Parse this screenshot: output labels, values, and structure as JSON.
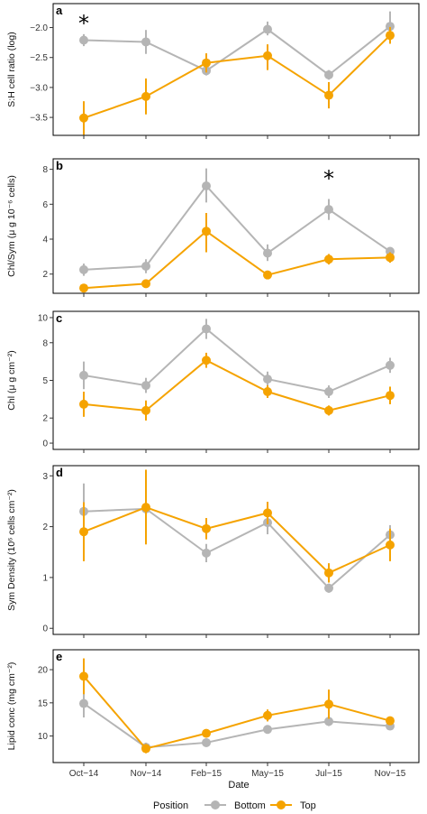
{
  "legend": {
    "title": "Position",
    "entries": [
      {
        "name": "Bottom",
        "color": "#b5b5b5"
      },
      {
        "name": "Top",
        "color": "#f5a300"
      }
    ]
  },
  "x_title": "Date",
  "chart_data": [
    {
      "panel": "a",
      "type": "line",
      "ylabel": "S:H cell ratio (log)",
      "ylim": [
        -3.8,
        -1.6
      ],
      "yticks": [
        -2.0,
        -2.5,
        -3.0,
        -3.5
      ],
      "ytick_labels": [
        "−2.0",
        "−2.5",
        "−3.0",
        "−3.5"
      ],
      "categories": [
        "Oct−14",
        "Nov−14",
        "Feb−15",
        "May−15",
        "Jul−15",
        "Nov−15"
      ],
      "annotations": [
        {
          "text": "*",
          "at": "Oct−14"
        }
      ],
      "series": [
        {
          "name": "Bottom",
          "values": [
            -2.21,
            -2.24,
            -2.72,
            -2.03,
            -2.79,
            -1.98
          ],
          "lower": [
            -2.31,
            -2.44,
            -2.8,
            -2.13,
            -2.87,
            -2.17
          ],
          "upper": [
            -2.11,
            -2.04,
            -2.64,
            -1.9,
            -2.71,
            -1.73
          ]
        },
        {
          "name": "Top",
          "values": [
            -3.51,
            -3.15,
            -2.59,
            -2.47,
            -3.13,
            -2.13
          ],
          "lower": [
            -3.79,
            -3.45,
            -2.75,
            -2.71,
            -3.35,
            -2.27
          ],
          "upper": [
            -3.23,
            -2.85,
            -2.43,
            -2.28,
            -2.91,
            -1.99
          ]
        }
      ]
    },
    {
      "panel": "b",
      "type": "line",
      "ylabel": "Chl/Sym (μ g 10⁻⁶ cells)",
      "ylim": [
        0.9,
        8.6
      ],
      "yticks": [
        2,
        4,
        6,
        8
      ],
      "ytick_labels": [
        "2",
        "4",
        "6",
        "8"
      ],
      "categories": [
        "Oct−14",
        "Nov−14",
        "Feb−15",
        "May−15",
        "Jul−15",
        "Nov−15"
      ],
      "annotations": [
        {
          "text": "*",
          "at": "Jul−15"
        }
      ],
      "series": [
        {
          "name": "Bottom",
          "values": [
            2.25,
            2.45,
            7.05,
            3.2,
            5.7,
            3.3
          ],
          "lower": [
            1.9,
            2.05,
            6.1,
            2.75,
            5.1,
            3.1
          ],
          "upper": [
            2.6,
            2.85,
            8.05,
            3.7,
            6.3,
            3.5
          ]
        },
        {
          "name": "Top",
          "values": [
            1.2,
            1.45,
            4.45,
            1.95,
            2.85,
            2.95
          ],
          "lower": [
            1.05,
            1.3,
            3.25,
            1.75,
            2.55,
            2.65
          ],
          "upper": [
            1.35,
            1.6,
            5.5,
            2.15,
            3.15,
            3.25
          ]
        }
      ]
    },
    {
      "panel": "c",
      "type": "line",
      "ylabel": "Chl (μ g cm⁻²)",
      "ylim": [
        -0.5,
        10.5
      ],
      "yticks": [
        0,
        2,
        5,
        8,
        10
      ],
      "ytick_labels": [
        "0",
        "2",
        "5",
        "8",
        "10"
      ],
      "categories": [
        "Oct−14",
        "Nov−14",
        "Feb−15",
        "May−15",
        "Jul−15",
        "Nov−15"
      ],
      "annotations": [],
      "series": [
        {
          "name": "Bottom",
          "values": [
            5.4,
            4.6,
            9.1,
            5.1,
            4.1,
            6.2
          ],
          "lower": [
            4.3,
            4.0,
            8.3,
            4.5,
            3.6,
            5.6
          ],
          "upper": [
            6.5,
            5.2,
            9.9,
            5.7,
            4.6,
            6.8
          ]
        },
        {
          "name": "Top",
          "values": [
            3.1,
            2.6,
            6.6,
            4.1,
            2.6,
            3.8
          ],
          "lower": [
            2.1,
            1.8,
            6.0,
            3.6,
            2.2,
            3.1
          ],
          "upper": [
            4.1,
            3.4,
            7.2,
            4.6,
            3.0,
            4.5
          ]
        }
      ]
    },
    {
      "panel": "d",
      "type": "line",
      "ylabel": "Sym Density (10⁶ cells cm⁻²)",
      "ylim": [
        -0.12,
        3.2
      ],
      "yticks": [
        0,
        1,
        2,
        3
      ],
      "ytick_labels": [
        "0",
        "1",
        "2",
        "3"
      ],
      "categories": [
        "Oct−14",
        "Nov−14",
        "Feb−15",
        "May−15",
        "Jul−15",
        "Nov−15"
      ],
      "annotations": [],
      "series": [
        {
          "name": "Bottom",
          "values": [
            2.3,
            2.35,
            1.48,
            2.08,
            0.79,
            1.84
          ],
          "lower": [
            1.75,
            2.2,
            1.3,
            1.85,
            0.7,
            1.65
          ],
          "upper": [
            2.85,
            2.5,
            1.66,
            2.31,
            0.88,
            2.03
          ]
        },
        {
          "name": "Top",
          "values": [
            1.9,
            2.38,
            1.96,
            2.27,
            1.09,
            1.64
          ],
          "lower": [
            1.32,
            1.65,
            1.75,
            2.05,
            0.9,
            1.32
          ],
          "upper": [
            2.48,
            3.12,
            2.17,
            2.49,
            1.28,
            1.96
          ]
        }
      ]
    },
    {
      "panel": "e",
      "type": "line",
      "ylabel": "Lipid conc (mg cm⁻²)",
      "ylim": [
        6.0,
        23.0
      ],
      "yticks": [
        10,
        15,
        20
      ],
      "ytick_labels": [
        "10",
        "15",
        "20"
      ],
      "xlabel": "Date",
      "categories": [
        "Oct−14",
        "Nov−14",
        "Feb−15",
        "May−15",
        "Jul−15",
        "Nov−15"
      ],
      "annotations": [],
      "series": [
        {
          "name": "Bottom",
          "values": [
            14.9,
            8.3,
            9.0,
            11.0,
            12.2,
            11.5
          ],
          "lower": [
            12.8,
            7.6,
            8.5,
            10.5,
            11.5,
            11.0
          ],
          "upper": [
            17.0,
            9.0,
            9.5,
            11.5,
            12.9,
            12.0
          ]
        },
        {
          "name": "Top",
          "values": [
            19.0,
            8.1,
            10.4,
            13.1,
            14.8,
            12.3
          ],
          "lower": [
            16.3,
            7.4,
            9.8,
            12.2,
            12.6,
            11.7
          ],
          "upper": [
            21.7,
            8.8,
            11.0,
            14.0,
            17.0,
            12.9
          ]
        }
      ]
    }
  ]
}
